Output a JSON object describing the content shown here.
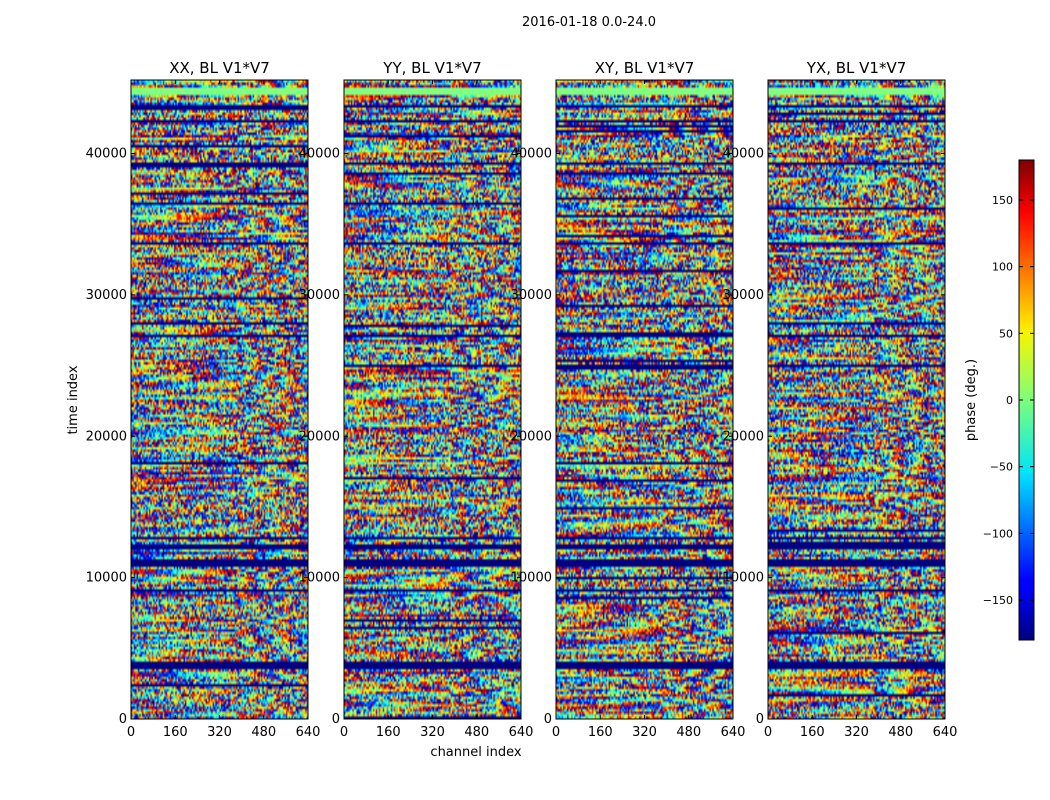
{
  "chart_data": {
    "type": "heatmap",
    "suptitle": "2016-01-18 0.0-24.0",
    "panels": [
      {
        "title": "XX, BL V1*V7",
        "seed": 11
      },
      {
        "title": "YY, BL V1*V7",
        "seed": 23
      },
      {
        "title": "XY, BL V1*V7",
        "seed": 37
      },
      {
        "title": "YX, BL V1*V7",
        "seed": 53
      }
    ],
    "xlabel": "channel index",
    "ylabel": "time index",
    "xlim": [
      0,
      640
    ],
    "ylim": [
      0,
      45200
    ],
    "xticks": [
      0,
      160,
      320,
      480,
      640
    ],
    "yticks": [
      0,
      10000,
      20000,
      30000,
      40000
    ],
    "colorbar": {
      "label": "phase (deg.)",
      "vmin": -180,
      "vmax": 180,
      "ticks": [
        -150,
        -100,
        -50,
        0,
        50,
        100,
        150
      ],
      "colormap": "jet"
    },
    "flagged_time_bands": [
      [
        3500,
        3900
      ],
      [
        9000,
        9200
      ],
      [
        10800,
        11300
      ],
      [
        12000,
        12300
      ],
      [
        12600,
        12900
      ],
      [
        27000,
        27200
      ],
      [
        33600,
        33800
      ],
      [
        39200,
        39500
      ],
      [
        42200,
        42500
      ],
      [
        43300,
        43600
      ]
    ],
    "colors": {
      "flag": "#00008f",
      "nan": "#80ff80"
    }
  }
}
